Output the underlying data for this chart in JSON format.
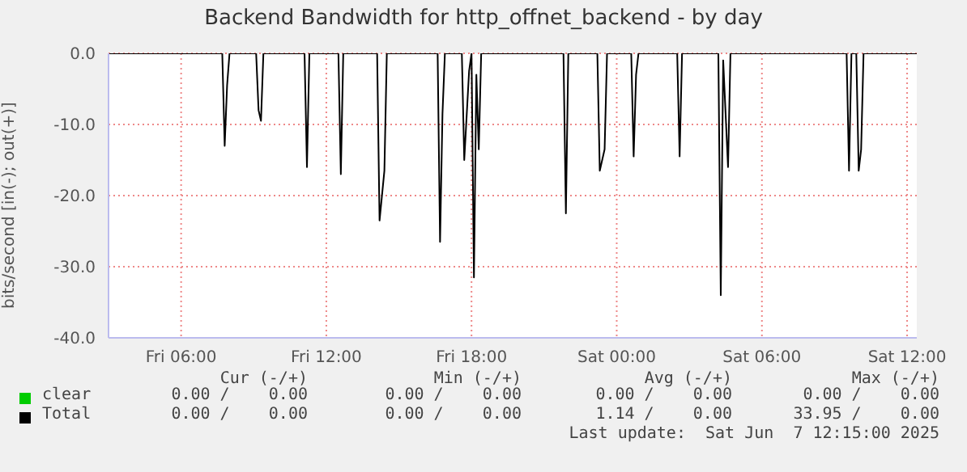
{
  "chart_data": {
    "type": "line",
    "title": "Backend Bandwidth for http_offnet_backend - by day",
    "ylabel": "bits/second [in(-); out(+)]",
    "xlim": [
      "2025-06-06T03:00",
      "2025-06-07T12:24"
    ],
    "xticks": [
      {
        "value": "2025-06-06T06:00",
        "label": "Fri 06:00"
      },
      {
        "value": "2025-06-06T12:00",
        "label": "Fri 12:00"
      },
      {
        "value": "2025-06-06T18:00",
        "label": "Fri 18:00"
      },
      {
        "value": "2025-06-07T00:00",
        "label": "Sat 00:00"
      },
      {
        "value": "2025-06-07T06:00",
        "label": "Sat 06:00"
      },
      {
        "value": "2025-06-07T12:00",
        "label": "Sat 12:00"
      }
    ],
    "ylim": [
      -40,
      0
    ],
    "yticks": [
      {
        "value": -40,
        "label": "-40.0"
      },
      {
        "value": -30,
        "label": "-30.0"
      },
      {
        "value": -20,
        "label": "-20.0"
      },
      {
        "value": -10,
        "label": "-10.0"
      },
      {
        "value": 0,
        "label": "0.0"
      }
    ],
    "grid": true,
    "legend": "bottom",
    "marker": "none",
    "line_style": "solid",
    "series": [
      {
        "name": "clear",
        "color": "#00cc00"
      },
      {
        "name": "Total",
        "color": "#000000",
        "x": [
          "2025-06-06T03:00",
          "2025-06-06T07:42",
          "2025-06-06T07:48",
          "2025-06-06T07:54",
          "2025-06-06T08:00",
          "2025-06-06T09:06",
          "2025-06-06T09:12",
          "2025-06-06T09:18",
          "2025-06-06T09:24",
          "2025-06-06T11:06",
          "2025-06-06T11:12",
          "2025-06-06T11:18",
          "2025-06-06T12:30",
          "2025-06-06T12:36",
          "2025-06-06T12:42",
          "2025-06-06T14:06",
          "2025-06-06T14:12",
          "2025-06-06T14:24",
          "2025-06-06T14:30",
          "2025-06-06T16:36",
          "2025-06-06T16:42",
          "2025-06-06T16:48",
          "2025-06-06T16:54",
          "2025-06-06T17:36",
          "2025-06-06T17:42",
          "2025-06-06T17:54",
          "2025-06-06T18:00",
          "2025-06-06T18:06",
          "2025-06-06T18:12",
          "2025-06-06T18:18",
          "2025-06-06T18:24",
          "2025-06-06T21:48",
          "2025-06-06T21:54",
          "2025-06-06T22:00",
          "2025-06-06T23:12",
          "2025-06-06T23:18",
          "2025-06-06T23:30",
          "2025-06-06T23:36",
          "2025-06-07T00:36",
          "2025-06-07T00:42",
          "2025-06-07T00:48",
          "2025-06-07T00:54",
          "2025-06-07T02:30",
          "2025-06-07T02:36",
          "2025-06-07T02:42",
          "2025-06-07T04:12",
          "2025-06-07T04:18",
          "2025-06-07T04:24",
          "2025-06-07T04:36",
          "2025-06-07T04:42",
          "2025-06-07T09:30",
          "2025-06-07T09:36",
          "2025-06-07T09:42",
          "2025-06-07T09:54",
          "2025-06-07T10:00",
          "2025-06-07T10:06",
          "2025-06-07T10:12",
          "2025-06-07T12:24"
        ],
        "values": [
          0,
          0,
          -13,
          -4.5,
          0,
          0,
          -8,
          -9.5,
          0,
          0,
          -16,
          0,
          0,
          -17,
          0,
          0,
          -23.5,
          -16.5,
          0,
          0,
          -26.5,
          -8.5,
          0,
          0,
          -15,
          -2.5,
          0,
          -31.5,
          -3,
          -13.5,
          0,
          0,
          -22.5,
          0,
          0,
          -16.5,
          -13.5,
          0,
          0,
          -14.5,
          -3,
          0,
          0,
          -14.5,
          0,
          0,
          -34,
          -1,
          -16,
          0,
          0,
          -16.5,
          0,
          0,
          -16.5,
          -13.5,
          0,
          0
        ]
      }
    ],
    "annotations": [
      "Cur (-/+)",
      "Min (-/+)",
      "Avg (-/+)",
      "Max (-/+)",
      "0.00 /    0.00",
      "0.00 /    0.00",
      "0.00 /    0.00",
      "0.00 /    0.00",
      "0.00 /    0.00",
      "0.00 /    0.00",
      "1.14 /    0.00",
      "33.95 /    0.00",
      "Last update:  Sat Jun  7 12:15:00 2025"
    ]
  }
}
